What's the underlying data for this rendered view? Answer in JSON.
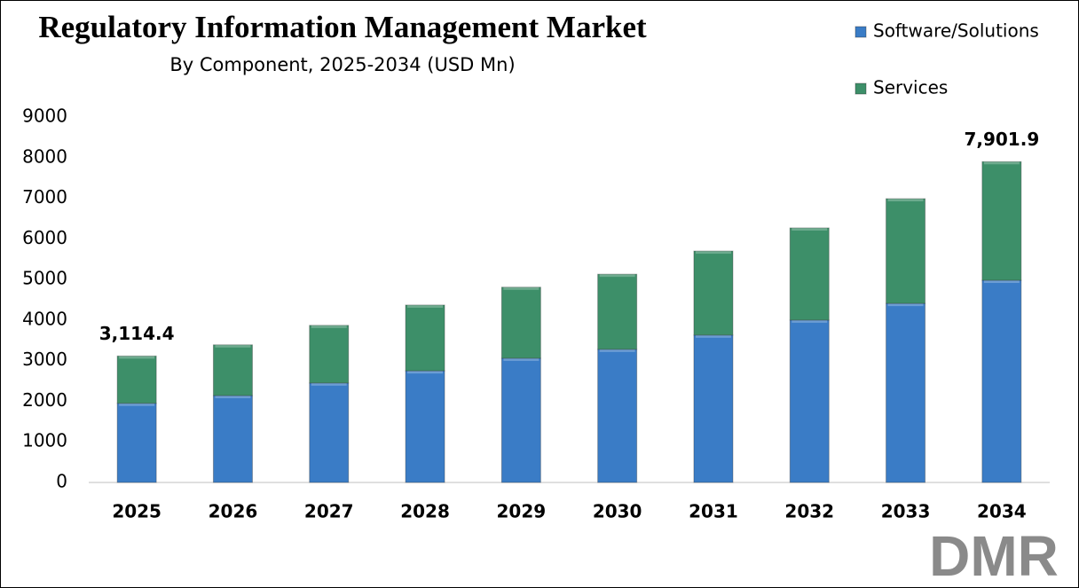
{
  "chart_data": {
    "type": "stacked_bar",
    "title": "Regulatory Information Management Market",
    "subtitle": "By Component, 2025-2034 (USD Mn)",
    "categories": [
      "2025",
      "2026",
      "2027",
      "2028",
      "2029",
      "2030",
      "2031",
      "2032",
      "2033",
      "2034"
    ],
    "series": [
      {
        "name": "Software/Solutions",
        "color": "#3a7cc6",
        "values": [
          1950,
          2140,
          2450,
          2750,
          3060,
          3280,
          3630,
          4000,
          4410,
          4980
        ]
      },
      {
        "name": "Services",
        "color": "#3d8f69",
        "values": [
          1164.4,
          1250,
          1420,
          1620,
          1750,
          1850,
          2070,
          2270,
          2580,
          2921.9
        ]
      }
    ],
    "annotations": [
      {
        "x": "2025",
        "value": 3114.4,
        "label": "3,114.4"
      },
      {
        "x": "2034",
        "value": 7901.9,
        "label": "7,901.9"
      }
    ],
    "ylim": [
      0,
      9000
    ],
    "yticks": [
      0,
      1000,
      2000,
      3000,
      4000,
      5000,
      6000,
      7000,
      8000,
      9000
    ],
    "grid": false,
    "legend": "top-right"
  },
  "logo": "DMR"
}
